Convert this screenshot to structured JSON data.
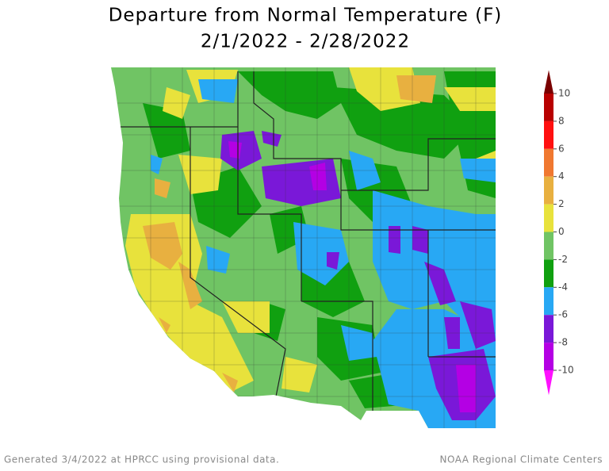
{
  "header": {
    "title": "Departure from Normal Temperature (F)",
    "subtitle": "2/1/2022 - 2/28/2022"
  },
  "colorbar": {
    "ticks": [
      10,
      8,
      6,
      4,
      2,
      0,
      -2,
      -4,
      -6,
      -8,
      -10
    ],
    "colors": [
      "#7a0000",
      "#b80000",
      "#ff1010",
      "#f07830",
      "#e8b040",
      "#e8e23c",
      "#70c464",
      "#10a010",
      "#28a8f4",
      "#7a18d8",
      "#b400e4",
      "#ff10ff"
    ]
  },
  "footer": {
    "left": "Generated 3/4/2022 at HPRCC using provisional data.",
    "right": "NOAA Regional Climate Centers"
  }
}
